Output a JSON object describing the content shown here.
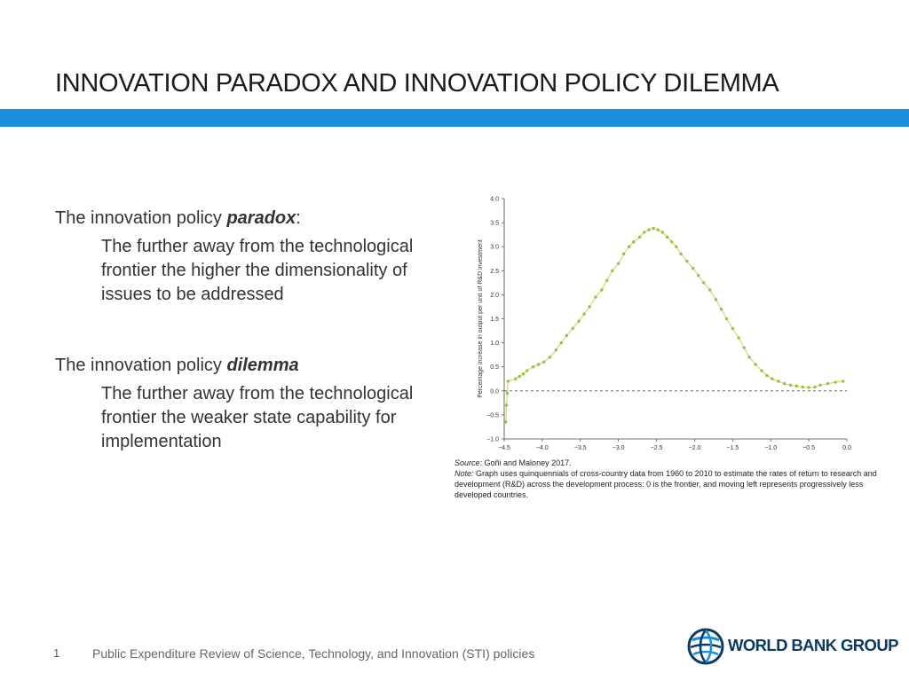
{
  "slide": {
    "title": "INNOVATION PARADOX AND INNOVATION POLICY DILEMMA",
    "page_number": "1",
    "footer": "Public Expenditure Review of Science, Technology, and Innovation (STI) policies",
    "brand_color": "#1a8fde"
  },
  "paradox": {
    "lead": "The innovation policy ",
    "keyword": "paradox",
    "colon": ":",
    "detail": "The further away from the technological frontier the higher the dimensionality of issues to be addressed"
  },
  "dilemma": {
    "lead": "The innovation policy ",
    "keyword": "dilemma",
    "detail": "The further away from the technological frontier the weaker state capability for implementation"
  },
  "figure": {
    "source_label": "Source:",
    "source_text": " Goñi and Maloney 2017.",
    "note_label": "Note:",
    "note_text": " Graph uses quinquennials of cross-country data from 1960 to 2010 to estimate the rates of return to research and development (R&D) across the development process: 0 is the frontier, and moving left represents progressively less developed countries."
  },
  "chart_data": {
    "type": "scatter",
    "ylabel": "Percentage increase in output per unit of R&D investment",
    "xlim": [
      -4.5,
      0.0
    ],
    "ylim": [
      -1.0,
      4.0
    ],
    "x_ticks": [
      "−4.5",
      "−4.0",
      "−3.5",
      "−3.0",
      "−2.5",
      "−2.0",
      "−1.5",
      "−1.0",
      "−0.5",
      "0.0"
    ],
    "y_ticks": [
      "4.0",
      "3.5",
      "3.0",
      "2.5",
      "2.0",
      "1.5",
      "1.0",
      "0.5",
      "0.0",
      "−0.5",
      "−1.0"
    ],
    "reference_line_y": 0.0,
    "point_color": "#8dc63f",
    "fit_color": "#e0c24a",
    "points": [
      {
        "x": -4.48,
        "y": -0.65
      },
      {
        "x": -4.47,
        "y": -0.3
      },
      {
        "x": -4.46,
        "y": -0.05
      },
      {
        "x": -4.45,
        "y": 0.2
      },
      {
        "x": -4.35,
        "y": 0.25
      },
      {
        "x": -4.3,
        "y": 0.3
      },
      {
        "x": -4.25,
        "y": 0.35
      },
      {
        "x": -4.2,
        "y": 0.42
      },
      {
        "x": -4.12,
        "y": 0.5
      },
      {
        "x": -4.05,
        "y": 0.55
      },
      {
        "x": -3.98,
        "y": 0.6
      },
      {
        "x": -3.9,
        "y": 0.7
      },
      {
        "x": -3.82,
        "y": 0.85
      },
      {
        "x": -3.75,
        "y": 1.0
      },
      {
        "x": -3.68,
        "y": 1.15
      },
      {
        "x": -3.6,
        "y": 1.3
      },
      {
        "x": -3.52,
        "y": 1.45
      },
      {
        "x": -3.45,
        "y": 1.6
      },
      {
        "x": -3.38,
        "y": 1.75
      },
      {
        "x": -3.3,
        "y": 1.95
      },
      {
        "x": -3.22,
        "y": 2.1
      },
      {
        "x": -3.15,
        "y": 2.3
      },
      {
        "x": -3.08,
        "y": 2.5
      },
      {
        "x": -3.0,
        "y": 2.65
      },
      {
        "x": -2.93,
        "y": 2.85
      },
      {
        "x": -2.86,
        "y": 3.0
      },
      {
        "x": -2.8,
        "y": 3.1
      },
      {
        "x": -2.72,
        "y": 3.2
      },
      {
        "x": -2.66,
        "y": 3.3
      },
      {
        "x": -2.6,
        "y": 3.35
      },
      {
        "x": -2.54,
        "y": 3.38
      },
      {
        "x": -2.48,
        "y": 3.35
      },
      {
        "x": -2.42,
        "y": 3.3
      },
      {
        "x": -2.36,
        "y": 3.2
      },
      {
        "x": -2.3,
        "y": 3.1
      },
      {
        "x": -2.24,
        "y": 3.0
      },
      {
        "x": -2.18,
        "y": 2.85
      },
      {
        "x": -2.1,
        "y": 2.7
      },
      {
        "x": -2.02,
        "y": 2.55
      },
      {
        "x": -1.95,
        "y": 2.4
      },
      {
        "x": -1.88,
        "y": 2.25
      },
      {
        "x": -1.8,
        "y": 2.1
      },
      {
        "x": -1.72,
        "y": 1.9
      },
      {
        "x": -1.65,
        "y": 1.7
      },
      {
        "x": -1.58,
        "y": 1.5
      },
      {
        "x": -1.5,
        "y": 1.3
      },
      {
        "x": -1.42,
        "y": 1.1
      },
      {
        "x": -1.35,
        "y": 0.9
      },
      {
        "x": -1.28,
        "y": 0.7
      },
      {
        "x": -1.2,
        "y": 0.55
      },
      {
        "x": -1.12,
        "y": 0.42
      },
      {
        "x": -1.05,
        "y": 0.32
      },
      {
        "x": -0.98,
        "y": 0.25
      },
      {
        "x": -0.9,
        "y": 0.2
      },
      {
        "x": -0.82,
        "y": 0.15
      },
      {
        "x": -0.74,
        "y": 0.12
      },
      {
        "x": -0.66,
        "y": 0.1
      },
      {
        "x": -0.58,
        "y": 0.08
      },
      {
        "x": -0.5,
        "y": 0.07
      },
      {
        "x": -0.42,
        "y": 0.08
      },
      {
        "x": -0.35,
        "y": 0.12
      },
      {
        "x": -0.25,
        "y": 0.15
      },
      {
        "x": -0.15,
        "y": 0.18
      },
      {
        "x": -0.05,
        "y": 0.2
      }
    ]
  }
}
